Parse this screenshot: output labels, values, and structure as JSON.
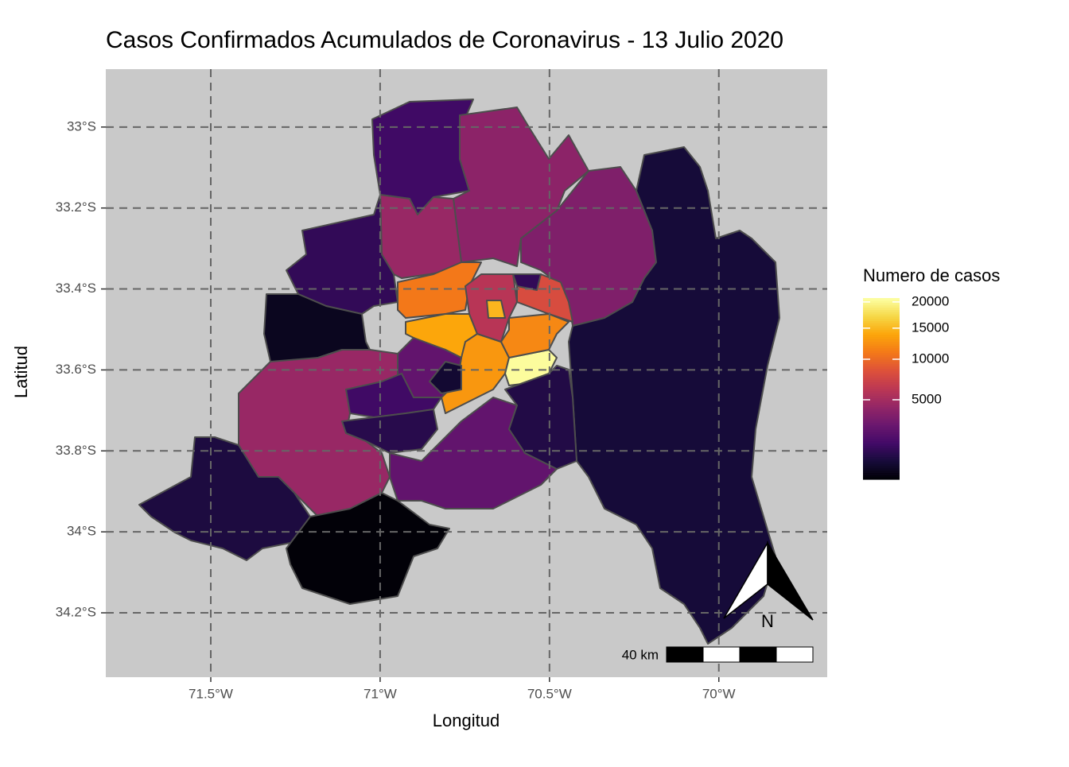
{
  "chart_data": {
    "type": "choropleth",
    "title": "Casos Confirmados Acumulados de Coronavirus - 13 Julio 2020",
    "x_label": "Longitud",
    "y_label": "Latitud",
    "values": [
      1500,
      4000,
      3500,
      700,
      4500,
      1200,
      400,
      4500,
      800,
      200,
      2500,
      11000,
      14000,
      13000,
      20500,
      12000,
      8000,
      1200,
      6000,
      15000,
      2500,
      600,
      1500,
      1000,
      900
    ],
    "xlim": [
      -71.81,
      -69.68
    ],
    "ylim": [
      -34.359,
      -32.857
    ],
    "xticks": [
      {
        "value": -71.5,
        "label": "71.5°W"
      },
      {
        "value": -71,
        "label": "71°W"
      },
      {
        "value": -70.5,
        "label": "70.5°W"
      },
      {
        "value": -70,
        "label": "70°W"
      }
    ],
    "yticks": [
      {
        "value": -33,
        "label": "33°S"
      },
      {
        "value": -33.2,
        "label": "33.2°S"
      },
      {
        "value": -33.4,
        "label": "33.4°S"
      },
      {
        "value": -33.6,
        "label": "33.6°S"
      },
      {
        "value": -33.8,
        "label": "33.8°S"
      },
      {
        "value": -34,
        "label": "34°S"
      },
      {
        "value": -34.2,
        "label": "34.2°S"
      }
    ],
    "grid": true,
    "colormap": "inferno",
    "color_trans": "sqrt",
    "legend_title": "Numero de casos",
    "colorlim": [
      175,
      20800
    ],
    "colorticks": [
      5000,
      10000,
      15000,
      20000
    ],
    "north_label": "N",
    "scale_bar_label": "40 km"
  }
}
